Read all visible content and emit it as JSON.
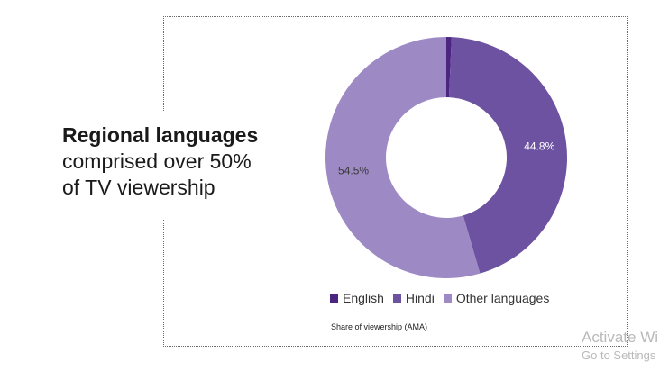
{
  "headline": {
    "bold": "Regional languages",
    "rest_line1": "comprised over 50%",
    "rest_line2": "of TV viewership"
  },
  "chart_data": {
    "type": "pie",
    "variant": "donut",
    "title": "",
    "caption": "Share of viewership (AMA)",
    "legend_position": "bottom",
    "categories": [
      "English",
      "Hindi",
      "Other languages"
    ],
    "values": [
      0.7,
      44.8,
      54.5
    ],
    "data_labels": [
      "0.7%",
      "44.8%",
      "54.5%"
    ],
    "colors": [
      "#4b2580",
      "#6c52a0",
      "#9d89c4"
    ]
  },
  "watermark": {
    "line1": "Activate Wi",
    "line2": "Go to Settings"
  }
}
